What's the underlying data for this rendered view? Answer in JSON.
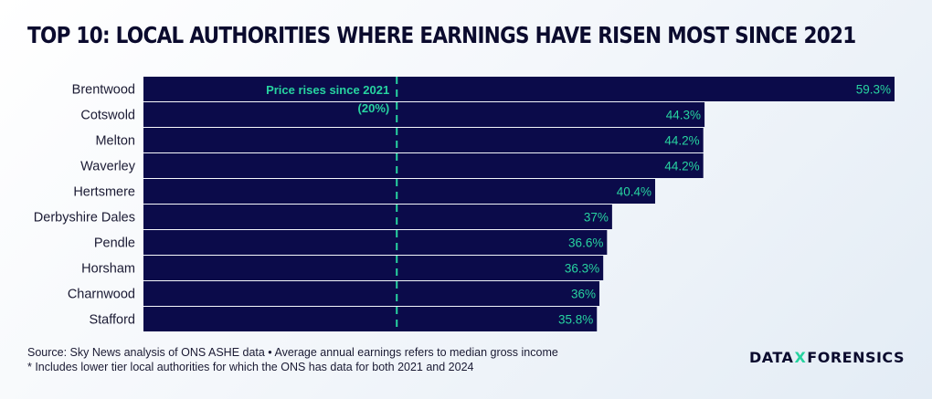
{
  "title": "TOP 10: LOCAL AUTHORITIES WHERE EARNINGS HAVE RISEN MOST SINCE 2021",
  "footer": {
    "source": "Source: Sky News analysis of ONS ASHE data • Average annual earnings refers to median gross income",
    "note": "* Includes lower tier local authorities for which the ONS has data for both 2021 and 2024"
  },
  "brand": {
    "left": "DATA",
    "mid": "X",
    "right": "FORENSICS"
  },
  "colors": {
    "bar": "#0b0b4a",
    "label": "#27d3a0",
    "text": "#1a1a33",
    "reference": "#27d3a0"
  },
  "chart_data": {
    "type": "bar",
    "orientation": "horizontal",
    "categories": [
      "Brentwood",
      "Cotswold",
      "Melton",
      "Waverley",
      "Hertsmere",
      "Derbyshire Dales",
      "Pendle",
      "Horsham",
      "Charnwood",
      "Stafford"
    ],
    "values": [
      59.3,
      44.3,
      44.2,
      44.2,
      40.4,
      37,
      36.6,
      36.3,
      36,
      35.8
    ],
    "value_labels": [
      "59.3%",
      "44.3%",
      "44.2%",
      "44.2%",
      "40.4%",
      "37%",
      "36.6%",
      "36.3%",
      "36%",
      "35.8%"
    ],
    "xlim": [
      0,
      59.3
    ],
    "reference_line": {
      "value": 20,
      "label_line1": "Price rises since 2021",
      "label_line2": "(20%)"
    },
    "grid": false,
    "legend": "none"
  }
}
